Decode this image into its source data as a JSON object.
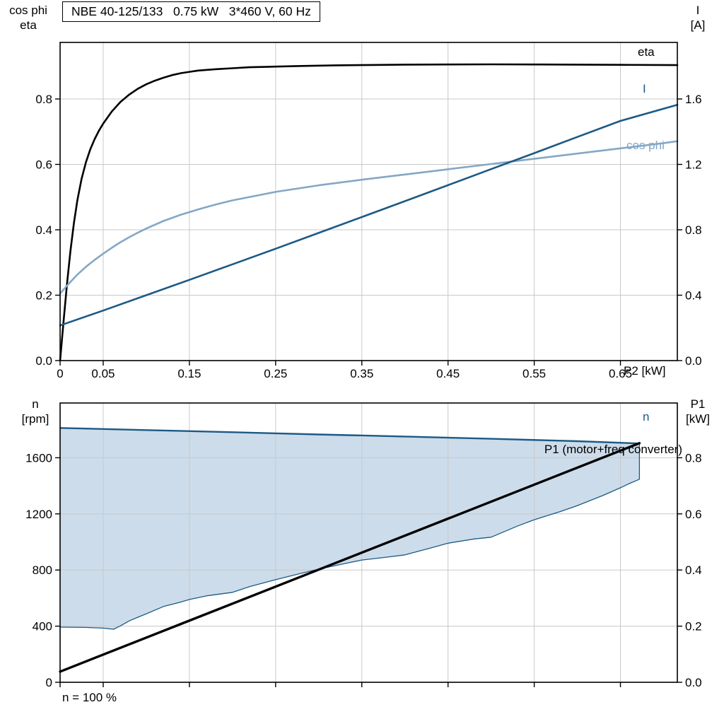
{
  "header": {
    "title": "NBE 40-125/133   0.75 kW   3*460 V, 60 Hz"
  },
  "colors": {
    "black": "#000000",
    "dark_blue": "#1c5a85",
    "light_blue": "#84a7c6",
    "band_fill": "#cddcea",
    "grid": "#c8c8c8"
  },
  "chart_data": [
    {
      "type": "line",
      "title": "NBE 40-125/133   0.75 kW   3*460 V, 60 Hz",
      "xlabel": "P2 [kW]",
      "xlim": [
        0,
        0.716
      ],
      "grid": true,
      "x_ticks": {
        "values": [
          0,
          0.05,
          0.15,
          0.25,
          0.35,
          0.45,
          0.55,
          0.65
        ],
        "labels": [
          "0",
          "0.05",
          "0.15",
          "0.25",
          "0.35",
          "0.45",
          "0.55",
          "0.65"
        ]
      },
      "left_axis": {
        "title_lines": [
          "cos phi",
          "eta"
        ],
        "lim": [
          0,
          0.973
        ],
        "ticks": {
          "values": [
            0,
            0.2,
            0.4,
            0.6,
            0.8
          ],
          "labels": [
            "0.0",
            "0.2",
            "0.4",
            "0.6",
            "0.8"
          ]
        }
      },
      "right_axis": {
        "title_lines": [
          "I",
          "[A]"
        ],
        "lim": [
          0,
          1.946
        ],
        "ticks": {
          "values": [
            0,
            0.4,
            0.8,
            1.2,
            1.6
          ],
          "labels": [
            "0.0",
            "0.4",
            "0.8",
            "1.2",
            "1.6"
          ]
        }
      },
      "series": [
        {
          "name": "eta",
          "label": "eta",
          "axis": "left",
          "color": "black",
          "width": 2.6,
          "points": [
            [
              0,
              0
            ],
            [
              0.004,
              0.12
            ],
            [
              0.008,
              0.235
            ],
            [
              0.012,
              0.335
            ],
            [
              0.016,
              0.42
            ],
            [
              0.02,
              0.49
            ],
            [
              0.025,
              0.557
            ],
            [
              0.03,
              0.607
            ],
            [
              0.035,
              0.646
            ],
            [
              0.04,
              0.677
            ],
            [
              0.045,
              0.703
            ],
            [
              0.05,
              0.725
            ],
            [
              0.06,
              0.762
            ],
            [
              0.07,
              0.791
            ],
            [
              0.08,
              0.813
            ],
            [
              0.09,
              0.831
            ],
            [
              0.1,
              0.845
            ],
            [
              0.11,
              0.856
            ],
            [
              0.12,
              0.865
            ],
            [
              0.13,
              0.873
            ],
            [
              0.14,
              0.879
            ],
            [
              0.15,
              0.883
            ],
            [
              0.16,
              0.887
            ],
            [
              0.18,
              0.891
            ],
            [
              0.2,
              0.894
            ],
            [
              0.22,
              0.897
            ],
            [
              0.25,
              0.899
            ],
            [
              0.28,
              0.901
            ],
            [
              0.32,
              0.903
            ],
            [
              0.36,
              0.904
            ],
            [
              0.4,
              0.905
            ],
            [
              0.45,
              0.9055
            ],
            [
              0.5,
              0.906
            ],
            [
              0.55,
              0.9055
            ],
            [
              0.6,
              0.905
            ],
            [
              0.65,
              0.9045
            ],
            [
              0.716,
              0.9035
            ]
          ]
        },
        {
          "name": "cos_phi",
          "label": "cos phi",
          "axis": "left",
          "color": "light_blue",
          "width": 2.6,
          "points": [
            [
              0,
              0.205
            ],
            [
              0.01,
              0.235
            ],
            [
              0.02,
              0.263
            ],
            [
              0.03,
              0.287
            ],
            [
              0.04,
              0.308
            ],
            [
              0.05,
              0.327
            ],
            [
              0.06,
              0.345
            ],
            [
              0.07,
              0.362
            ],
            [
              0.08,
              0.377
            ],
            [
              0.09,
              0.391
            ],
            [
              0.1,
              0.404
            ],
            [
              0.12,
              0.427
            ],
            [
              0.14,
              0.446
            ],
            [
              0.16,
              0.462
            ],
            [
              0.18,
              0.477
            ],
            [
              0.2,
              0.49
            ],
            [
              0.25,
              0.516
            ],
            [
              0.3,
              0.536
            ],
            [
              0.35,
              0.553
            ],
            [
              0.4,
              0.569
            ],
            [
              0.45,
              0.585
            ],
            [
              0.5,
              0.601
            ],
            [
              0.55,
              0.617
            ],
            [
              0.6,
              0.633
            ],
            [
              0.65,
              0.649
            ],
            [
              0.7,
              0.665
            ],
            [
              0.716,
              0.671
            ]
          ]
        },
        {
          "name": "I",
          "label": "I",
          "axis": "right",
          "color": "dark_blue",
          "width": 2.6,
          "points": [
            [
              0,
              0.215
            ],
            [
              0.05,
              0.306
            ],
            [
              0.1,
              0.4
            ],
            [
              0.15,
              0.494
            ],
            [
              0.2,
              0.589
            ],
            [
              0.25,
              0.684
            ],
            [
              0.3,
              0.781
            ],
            [
              0.35,
              0.878
            ],
            [
              0.4,
              0.975
            ],
            [
              0.45,
              1.073
            ],
            [
              0.5,
              1.171
            ],
            [
              0.55,
              1.269
            ],
            [
              0.6,
              1.368
            ],
            [
              0.65,
              1.466
            ],
            [
              0.716,
              1.564
            ]
          ]
        }
      ]
    },
    {
      "type": "line+band",
      "footnote": "n = 100 %",
      "xlim": [
        0,
        0.716
      ],
      "grid": true,
      "x_ticks": {
        "values": [
          0,
          0.05,
          0.15,
          0.25,
          0.35,
          0.45,
          0.55,
          0.65
        ],
        "labels": []
      },
      "left_axis": {
        "title_lines": [
          "n",
          "[rpm]"
        ],
        "lim": [
          0,
          1990
        ],
        "ticks": {
          "values": [
            0,
            400,
            800,
            1200,
            1600
          ],
          "labels": [
            "0",
            "400",
            "800",
            "1200",
            "1600"
          ]
        }
      },
      "right_axis": {
        "title_lines": [
          "P1",
          "[kW]"
        ],
        "lim": [
          0,
          0.995
        ],
        "ticks": {
          "values": [
            0,
            0.2,
            0.4,
            0.6,
            0.8
          ],
          "labels": [
            "0.0",
            "0.2",
            "0.4",
            "0.6",
            "0.8"
          ]
        }
      },
      "band": {
        "name": "speed-range",
        "label": "n",
        "axis": "left",
        "color": "dark_blue",
        "upper": [
          [
            0,
            1812
          ],
          [
            0.1,
            1797
          ],
          [
            0.2,
            1782
          ],
          [
            0.3,
            1766
          ],
          [
            0.4,
            1751
          ],
          [
            0.5,
            1735
          ],
          [
            0.6,
            1718
          ],
          [
            0.672,
            1702
          ]
        ],
        "lower": [
          [
            0,
            393
          ],
          [
            0.03,
            391
          ],
          [
            0.05,
            386
          ],
          [
            0.062,
            378
          ],
          [
            0.07,
            402
          ],
          [
            0.08,
            437
          ],
          [
            0.09,
            463
          ],
          [
            0.1,
            488
          ],
          [
            0.12,
            540
          ],
          [
            0.14,
            572
          ],
          [
            0.15,
            590
          ],
          [
            0.17,
            616
          ],
          [
            0.2,
            641
          ],
          [
            0.22,
            682
          ],
          [
            0.25,
            731
          ],
          [
            0.28,
            777
          ],
          [
            0.3,
            806
          ],
          [
            0.33,
            846
          ],
          [
            0.35,
            871
          ],
          [
            0.38,
            892
          ],
          [
            0.4,
            908
          ],
          [
            0.43,
            957
          ],
          [
            0.45,
            991
          ],
          [
            0.48,
            1021
          ],
          [
            0.5,
            1034
          ],
          [
            0.53,
            1112
          ],
          [
            0.55,
            1158
          ],
          [
            0.58,
            1216
          ],
          [
            0.6,
            1259
          ],
          [
            0.63,
            1332
          ],
          [
            0.65,
            1386
          ],
          [
            0.66,
            1415
          ],
          [
            0.672,
            1447
          ]
        ]
      },
      "series": [
        {
          "name": "P1",
          "label": "P1 (motor+freq converter)",
          "axis": "right",
          "color": "black",
          "width": 3.4,
          "points": [
            [
              0,
              0.038
            ],
            [
              0.672,
              0.852
            ]
          ]
        }
      ]
    }
  ]
}
